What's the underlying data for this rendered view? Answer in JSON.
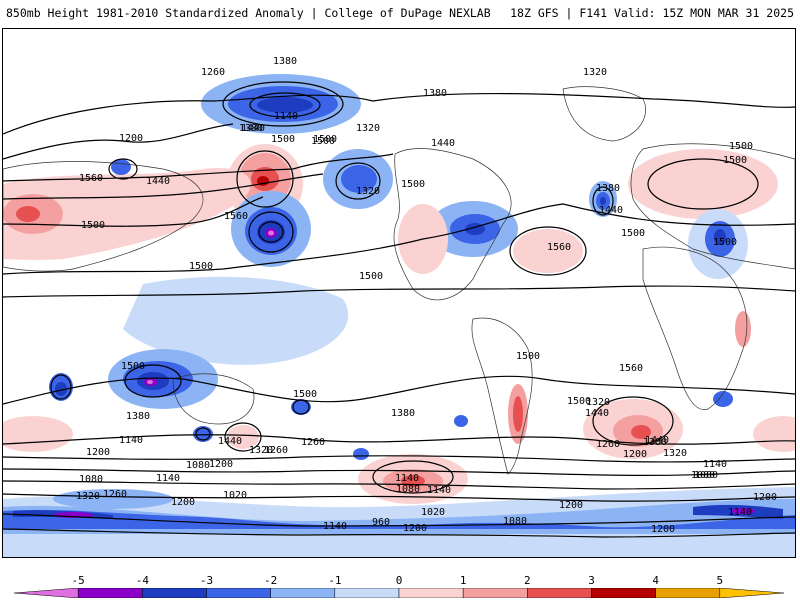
{
  "header": {
    "left_title": "850mb Height 1981-2010 Standardized Anomaly | College of DuPage NEXLAB",
    "right_title": "18Z GFS | F141 Valid: 15Z MON MAR 31 2025"
  },
  "map": {
    "contour_labels": [
      "1260",
      "1320",
      "1380",
      "1140",
      "1200",
      "1380",
      "1320",
      "1440",
      "1500",
      "1500",
      "1560",
      "1440",
      "1380",
      "1500",
      "1560",
      "1500",
      "1500",
      "1320",
      "1440",
      "1500",
      "1560",
      "1500",
      "1500",
      "1500",
      "1440",
      "1500",
      "1500",
      "1380",
      "1500",
      "1560",
      "1500",
      "1440",
      "1380",
      "1260",
      "1200",
      "1140",
      "1440",
      "1320",
      "1260",
      "1380",
      "1440",
      "1320",
      "1260",
      "1200",
      "1380",
      "1320",
      "1080",
      "1140",
      "1080",
      "1200",
      "1140",
      "1080",
      "1140",
      "1020",
      "1200",
      "1260",
      "1320",
      "1020",
      "1080",
      "960",
      "1140",
      "1200",
      "1140",
      "1080",
      "1200",
      "1200",
      "1140",
      "1080",
      "1200",
      "1500",
      "1500"
    ]
  },
  "colorbar": {
    "ticks": [
      "-5",
      "-4",
      "-3",
      "-2",
      "-1",
      "0",
      "1",
      "2",
      "3",
      "4",
      "5"
    ],
    "colors": [
      "#e070e0",
      "#8b00c8",
      "#1e3cc0",
      "#3c64e6",
      "#8cb4f5",
      "#c8dcfa",
      "#fad2d2",
      "#f5a0a0",
      "#e65050",
      "#b40000",
      "#e8a000",
      "#ffc000"
    ]
  }
}
